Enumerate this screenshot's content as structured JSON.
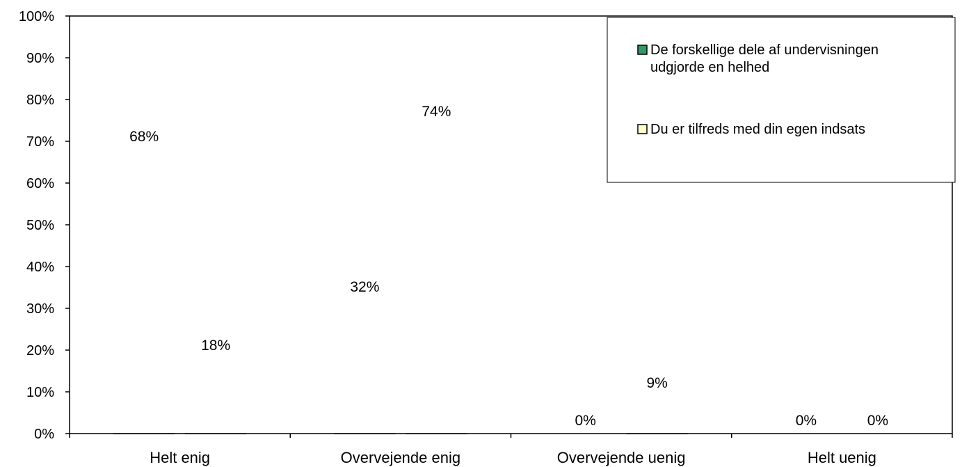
{
  "chart_data": {
    "type": "bar",
    "title": "",
    "xlabel": "",
    "ylabel": "",
    "categories": [
      "Helt enig",
      "Overvejende enig",
      "Overvejende uenig",
      "Helt uenig"
    ],
    "series": [
      {
        "name": "De forskellige dele af undervisningen udgjorde en helhed",
        "legend_lines": [
          "De forskellige dele af undervisningen",
          "udgjorde en helhed"
        ],
        "values": [
          68,
          32,
          0,
          0
        ],
        "labels": [
          "68%",
          "32%",
          "0%",
          "0%"
        ],
        "color": "#339966"
      },
      {
        "name": "Du er tilfreds med din egen indsats",
        "legend_lines": [
          "Du er tilfreds med din egen indsats"
        ],
        "values": [
          18,
          74,
          9,
          0
        ],
        "labels": [
          "18%",
          "74%",
          "9%",
          "0%"
        ],
        "color": "#FFFFCC"
      }
    ],
    "ylim": [
      0,
      100
    ],
    "yticks": [
      "0%",
      "10%",
      "20%",
      "30%",
      "40%",
      "50%",
      "60%",
      "70%",
      "80%",
      "90%",
      "100%"
    ],
    "grid": true,
    "legend_position": "top-right"
  }
}
